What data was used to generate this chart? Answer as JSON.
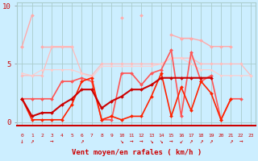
{
  "background_color": "#cceeff",
  "grid_color": "#aacccc",
  "x_label": "Vent moyen/en rafales ( km/h )",
  "ylim": [
    0,
    10
  ],
  "xlim": [
    0,
    23
  ],
  "yticks": [
    0,
    5,
    10
  ],
  "xticks": [
    0,
    1,
    2,
    3,
    4,
    5,
    6,
    7,
    8,
    9,
    10,
    11,
    12,
    13,
    14,
    15,
    16,
    17,
    18,
    19,
    20,
    21,
    22,
    23
  ],
  "lines": [
    {
      "y": [
        6.5,
        9.2,
        null,
        null,
        null,
        null,
        null,
        null,
        null,
        null,
        9.0,
        null,
        9.2,
        null,
        null,
        7.5,
        7.2,
        7.2,
        null,
        null,
        null,
        null,
        null,
        null
      ],
      "color": "#ffaaaa",
      "lw": 1.0,
      "marker": "D",
      "ms": 2.0
    },
    {
      "y": [
        6.5,
        null,
        6.5,
        6.5,
        6.5,
        6.5,
        null,
        null,
        null,
        null,
        null,
        null,
        null,
        null,
        null,
        null,
        null,
        null,
        null,
        null,
        null,
        null,
        null,
        null
      ],
      "color": "#ffaaaa",
      "lw": 1.0,
      "marker": "D",
      "ms": 2.0
    },
    {
      "y": [
        null,
        null,
        null,
        null,
        null,
        null,
        null,
        null,
        null,
        null,
        null,
        null,
        null,
        null,
        null,
        null,
        7.2,
        7.2,
        7.0,
        6.5,
        6.5,
        6.5,
        null,
        null
      ],
      "color": "#ffaaaa",
      "lw": 1.0,
      "marker": "D",
      "ms": 2.0
    },
    {
      "y": [
        4.0,
        4.0,
        4.0,
        6.5,
        6.5,
        6.5,
        4.2,
        4.0,
        5.0,
        5.0,
        5.0,
        5.0,
        5.0,
        5.0,
        5.0,
        5.5,
        5.5,
        5.5,
        5.0,
        5.0,
        5.0,
        5.0,
        5.0,
        4.0
      ],
      "color": "#ffbbbb",
      "lw": 0.9,
      "marker": "D",
      "ms": 1.8
    },
    {
      "y": [
        4.2,
        4.0,
        4.5,
        4.5,
        4.5,
        4.5,
        4.2,
        3.8,
        4.8,
        4.8,
        4.8,
        4.8,
        4.8,
        4.8,
        5.0,
        5.5,
        5.5,
        5.0,
        4.5,
        4.5,
        4.0,
        4.0,
        4.0,
        4.0
      ],
      "color": "#ffcccc",
      "lw": 0.8,
      "marker": "D",
      "ms": 1.5
    },
    {
      "y": [
        2.0,
        2.0,
        2.0,
        2.0,
        3.5,
        3.5,
        3.8,
        3.5,
        0.2,
        0.2,
        4.2,
        4.2,
        3.2,
        4.2,
        4.5,
        6.2,
        0.5,
        6.0,
        3.5,
        4.0,
        0.2,
        2.0,
        2.0,
        null
      ],
      "color": "#ff5555",
      "lw": 1.2,
      "marker": "D",
      "ms": 2.0
    },
    {
      "y": [
        2.0,
        0.2,
        0.2,
        0.2,
        0.2,
        1.5,
        3.5,
        3.8,
        0.2,
        0.5,
        0.2,
        0.5,
        0.5,
        2.2,
        4.2,
        0.5,
        3.0,
        1.0,
        3.5,
        2.5,
        0.2,
        2.0,
        null,
        null
      ],
      "color": "#ff2200",
      "lw": 1.2,
      "marker": "D",
      "ms": 2.0
    },
    {
      "y": [
        2.0,
        0.5,
        0.8,
        0.8,
        1.5,
        2.0,
        2.8,
        2.8,
        1.2,
        1.8,
        2.2,
        2.8,
        2.8,
        3.2,
        3.8,
        3.8,
        3.8,
        3.8,
        3.8,
        3.8,
        null,
        null,
        null,
        null
      ],
      "color": "#cc0000",
      "lw": 1.5,
      "marker": "D",
      "ms": 2.0
    }
  ],
  "wind_arrows": {
    "hours": [
      0,
      1,
      3,
      6,
      10,
      11,
      12,
      13,
      14,
      15,
      16,
      17,
      18,
      19,
      21,
      22
    ],
    "symbols": [
      "↓",
      "↗",
      "→",
      "↗",
      "↘",
      "→",
      "→",
      "↘",
      "↘",
      "→",
      "↙",
      "↗",
      "↗",
      "↗",
      "↗",
      "→"
    ],
    "color": "#cc0000",
    "fontsize": 5.5
  }
}
